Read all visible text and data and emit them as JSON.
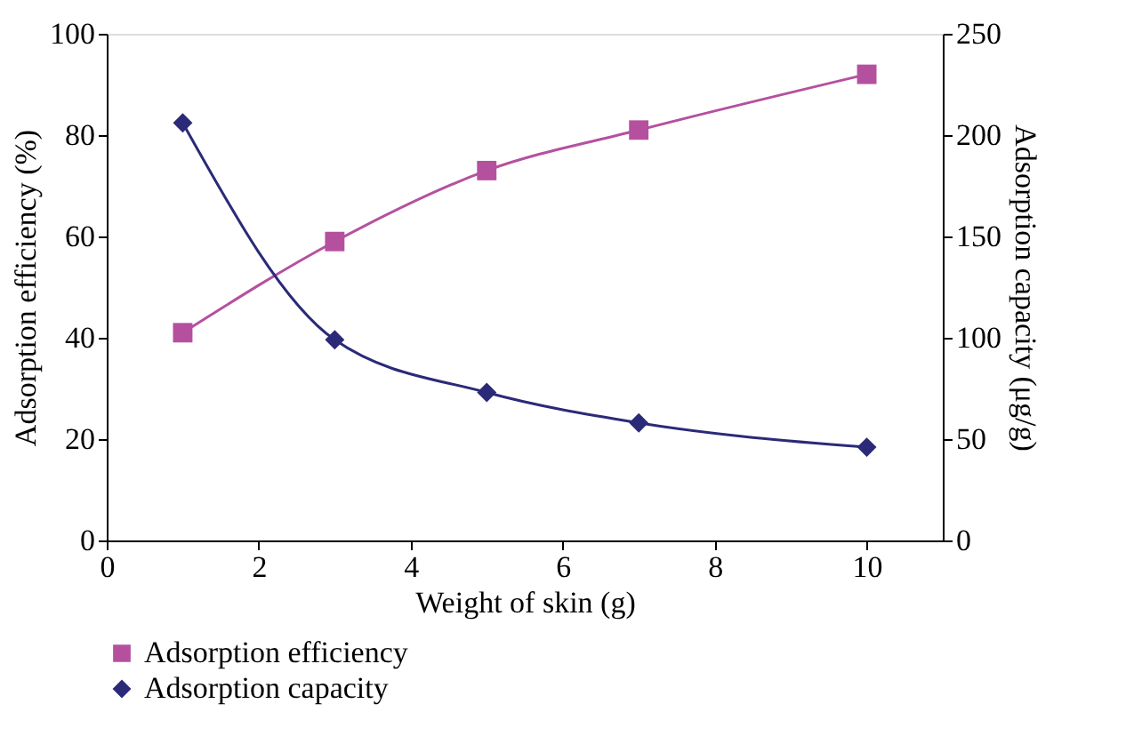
{
  "chart_data": {
    "type": "line",
    "xlabel": "Weight of skin (g)",
    "ylabel": "Adsorption efficiency (%)",
    "y2label": "Adsorption capacity (μg/g)",
    "x": [
      1,
      3,
      5,
      7,
      10
    ],
    "series": [
      {
        "name": "Adsorption efficiency",
        "color": "#b5509f",
        "marker": "square",
        "values": [
          41,
          59,
          73,
          81,
          92
        ]
      },
      {
        "name": "Adsorption capacity",
        "color": "#2b2a78",
        "marker": "diamond",
        "axis": "y2",
        "values": [
          206,
          99,
          73,
          58,
          46
        ]
      }
    ],
    "xlim": [
      0,
      11
    ],
    "xticks": [
      0,
      2,
      4,
      6,
      8,
      10
    ],
    "ylim": [
      0,
      100
    ],
    "yticks": [
      0,
      20,
      40,
      60,
      80,
      100
    ],
    "y2lim": [
      0,
      250
    ],
    "y2ticks": [
      0,
      50,
      100,
      150,
      200,
      250
    ],
    "grid": false,
    "legend": "bottom",
    "line_style": "solid"
  }
}
